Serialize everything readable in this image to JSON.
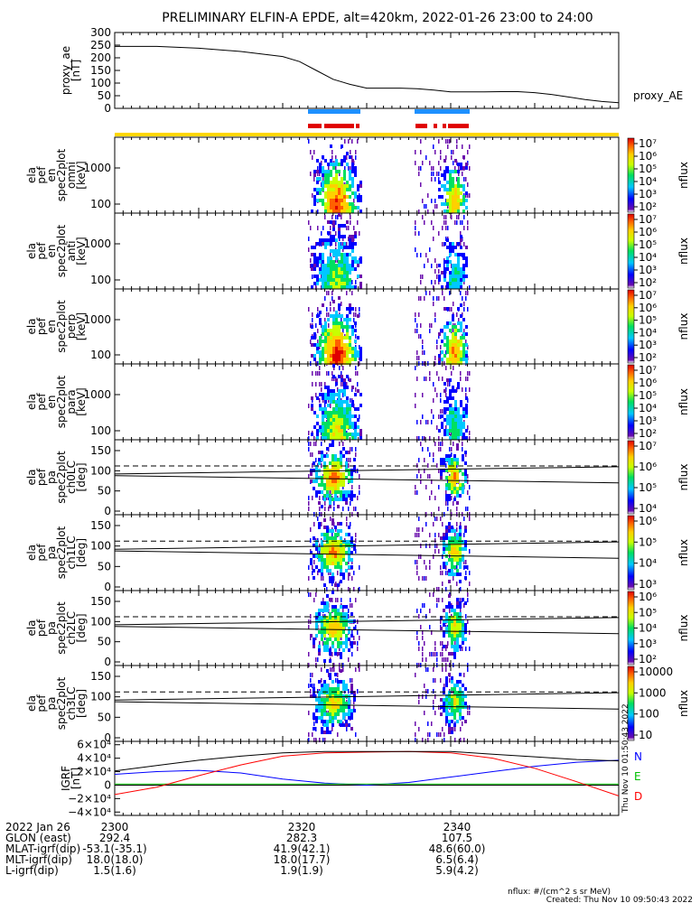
{
  "title": "PRELIMINARY ELFIN-A EPDE, alt=420km, 2022-01-26 23:00 to 24:00",
  "colors": {
    "yellow_bar": "#ffd700",
    "blue_bar": "#1e90ff",
    "red_bar": "#e00000",
    "igrf_N": "#0000ff",
    "igrf_E": "#00c000",
    "igrf_D": "#ff0000"
  },
  "chart_data": [
    {
      "type": "line",
      "panel": "proxy_ae",
      "ylabel": [
        "proxy_ae",
        "[nT]"
      ],
      "legend": "proxy_AE",
      "ylim": [
        0,
        300
      ],
      "yticks": [
        "300",
        "250",
        "200",
        "150",
        "100",
        "50",
        "0"
      ],
      "x_minutes": [
        0,
        5,
        10,
        15,
        20,
        22,
        24,
        26,
        28,
        30,
        32,
        34,
        36,
        38,
        40,
        42,
        44,
        46,
        48,
        50,
        52,
        54,
        56,
        58,
        60
      ],
      "values": [
        245,
        245,
        238,
        225,
        205,
        185,
        150,
        115,
        95,
        80,
        80,
        80,
        78,
        72,
        65,
        65,
        65,
        66,
        66,
        62,
        55,
        45,
        35,
        27,
        22
      ]
    },
    {
      "type": "heatmap",
      "panel": "en_spec2plot_omni",
      "ylabel": [
        "ela",
        "pef",
        "en",
        "spec2plot",
        "omni",
        "[keV]"
      ],
      "yticks": [
        "1000",
        "100"
      ],
      "colorbar": {
        "label": "nflux",
        "ticks": [
          "10²",
          "10³",
          "10⁴",
          "10⁵",
          "10⁶",
          "10⁷"
        ]
      }
    },
    {
      "type": "heatmap",
      "panel": "en_spec2plot_anti",
      "ylabel": [
        "ela",
        "pef",
        "en",
        "spec2plot",
        "anti",
        "[keV]"
      ],
      "yticks": [
        "1000",
        "100"
      ],
      "colorbar": {
        "label": "nflux",
        "ticks": [
          "10²",
          "10³",
          "10⁴",
          "10⁵",
          "10⁶",
          "10⁷"
        ]
      }
    },
    {
      "type": "heatmap",
      "panel": "en_spec2plot_perp",
      "ylabel": [
        "ela",
        "pef",
        "en",
        "spec2plot",
        "perp",
        "[keV]"
      ],
      "yticks": [
        "1000",
        "100"
      ],
      "colorbar": {
        "label": "nflux",
        "ticks": [
          "10²",
          "10³",
          "10⁴",
          "10⁵",
          "10⁶",
          "10⁷"
        ]
      }
    },
    {
      "type": "heatmap",
      "panel": "en_spec2plot_para",
      "ylabel": [
        "ela",
        "pef",
        "en",
        "spec2plot",
        "para",
        "[keV]"
      ],
      "yticks": [
        "1000",
        "100"
      ],
      "colorbar": {
        "label": "nflux",
        "ticks": [
          "10²",
          "10³",
          "10⁴",
          "10⁵",
          "10⁶",
          "10⁷"
        ]
      }
    },
    {
      "type": "heatmap",
      "panel": "pa_spec2plot_ch0LC",
      "ylabel": [
        "ela",
        "pef",
        "pa",
        "spec2plot",
        "ch0LC",
        "[deg]"
      ],
      "yticks": [
        "150",
        "100",
        "50",
        "0"
      ],
      "colorbar": {
        "label": "nflux",
        "ticks": [
          "10⁴",
          "10⁵",
          "10⁶",
          "10⁷"
        ]
      }
    },
    {
      "type": "heatmap",
      "panel": "pa_spec2plot_ch1LC",
      "ylabel": [
        "ela",
        "pef",
        "pa",
        "spec2plot",
        "ch1LC",
        "[deg]"
      ],
      "yticks": [
        "150",
        "100",
        "50",
        "0"
      ],
      "colorbar": {
        "label": "nflux",
        "ticks": [
          "10³",
          "10⁴",
          "10⁵",
          "10⁶"
        ]
      }
    },
    {
      "type": "heatmap",
      "panel": "pa_spec2plot_ch2LC",
      "ylabel": [
        "ela",
        "pef",
        "pa",
        "spec2plot",
        "ch2LC",
        "[deg]"
      ],
      "yticks": [
        "150",
        "100",
        "50",
        "0"
      ],
      "colorbar": {
        "label": "nflux",
        "ticks": [
          "10²",
          "10³",
          "10⁴",
          "10⁵",
          "10⁶"
        ]
      }
    },
    {
      "type": "heatmap",
      "panel": "pa_spec2plot_ch3LC",
      "ylabel": [
        "ela",
        "pef",
        "pa",
        "spec2plot",
        "ch3LC",
        "[deg]"
      ],
      "yticks": [
        "150",
        "100",
        "50",
        "0"
      ],
      "colorbar": {
        "label": "nflux",
        "ticks": [
          "10",
          "100",
          "1000",
          "10000"
        ]
      }
    },
    {
      "type": "line",
      "panel": "igrf",
      "ylabel": [
        "IGRF",
        "[nT]"
      ],
      "ylim": [
        -45000,
        65000
      ],
      "yticks": [
        "6×10⁴",
        "4×10⁴",
        "2×10⁴",
        "0",
        "−2×10⁴",
        "−4×10⁴"
      ],
      "legend": [
        "N",
        "E",
        "D"
      ],
      "x_minutes": [
        0,
        5,
        10,
        15,
        20,
        25,
        30,
        35,
        40,
        45,
        50,
        55,
        60
      ],
      "series": [
        {
          "name": "N",
          "values": [
            16000,
            20000,
            22000,
            18000,
            9000,
            3000,
            0,
            4000,
            12000,
            20000,
            28000,
            34000,
            37000
          ]
        },
        {
          "name": "E",
          "values": [
            1500,
            1500,
            1500,
            1500,
            1500,
            1500,
            1500,
            1500,
            1500,
            1500,
            1500,
            1500,
            1500
          ]
        },
        {
          "name": "D",
          "values": [
            -14000,
            -3000,
            14000,
            30000,
            43000,
            48000,
            49000,
            50000,
            48000,
            40000,
            25000,
            5000,
            -16000
          ]
        },
        {
          "name": "",
          "values": [
            21000,
            29000,
            37000,
            43000,
            48000,
            50000,
            50000,
            50000,
            50000,
            46000,
            42000,
            38000,
            36000
          ]
        }
      ]
    }
  ],
  "time_axis": {
    "tick_labels": [
      "2300",
      "2320",
      "2340"
    ],
    "tick_minutes": [
      0,
      20,
      40
    ]
  },
  "footer_rows": [
    {
      "label": "2022 Jan 26",
      "values": [
        "2300",
        "2320",
        "2340"
      ]
    },
    {
      "label": "GLON (east)",
      "values": [
        "292.4",
        "282.3",
        "107.5"
      ]
    },
    {
      "label": "MLAT-igrf(dip)",
      "values": [
        "-53.1(-35.1)",
        "41.9(42.1)",
        "48.6(60.0)"
      ]
    },
    {
      "label": "MLT-igrf(dip)",
      "values": [
        "18.0(18.0)",
        "18.0(17.7)",
        "6.5(6.4)"
      ]
    },
    {
      "label": "L-igrf(dip)",
      "values": [
        "1.5(1.6)",
        "1.9(1.9)",
        "5.9(4.2)"
      ]
    }
  ],
  "units_note": "nflux: #/(cm^2 s sr MeV)",
  "created_note": "Created: Thu Nov 10 09:50:43 2022",
  "side_timestamp": "Thu Nov 10 01:50:43 2022"
}
